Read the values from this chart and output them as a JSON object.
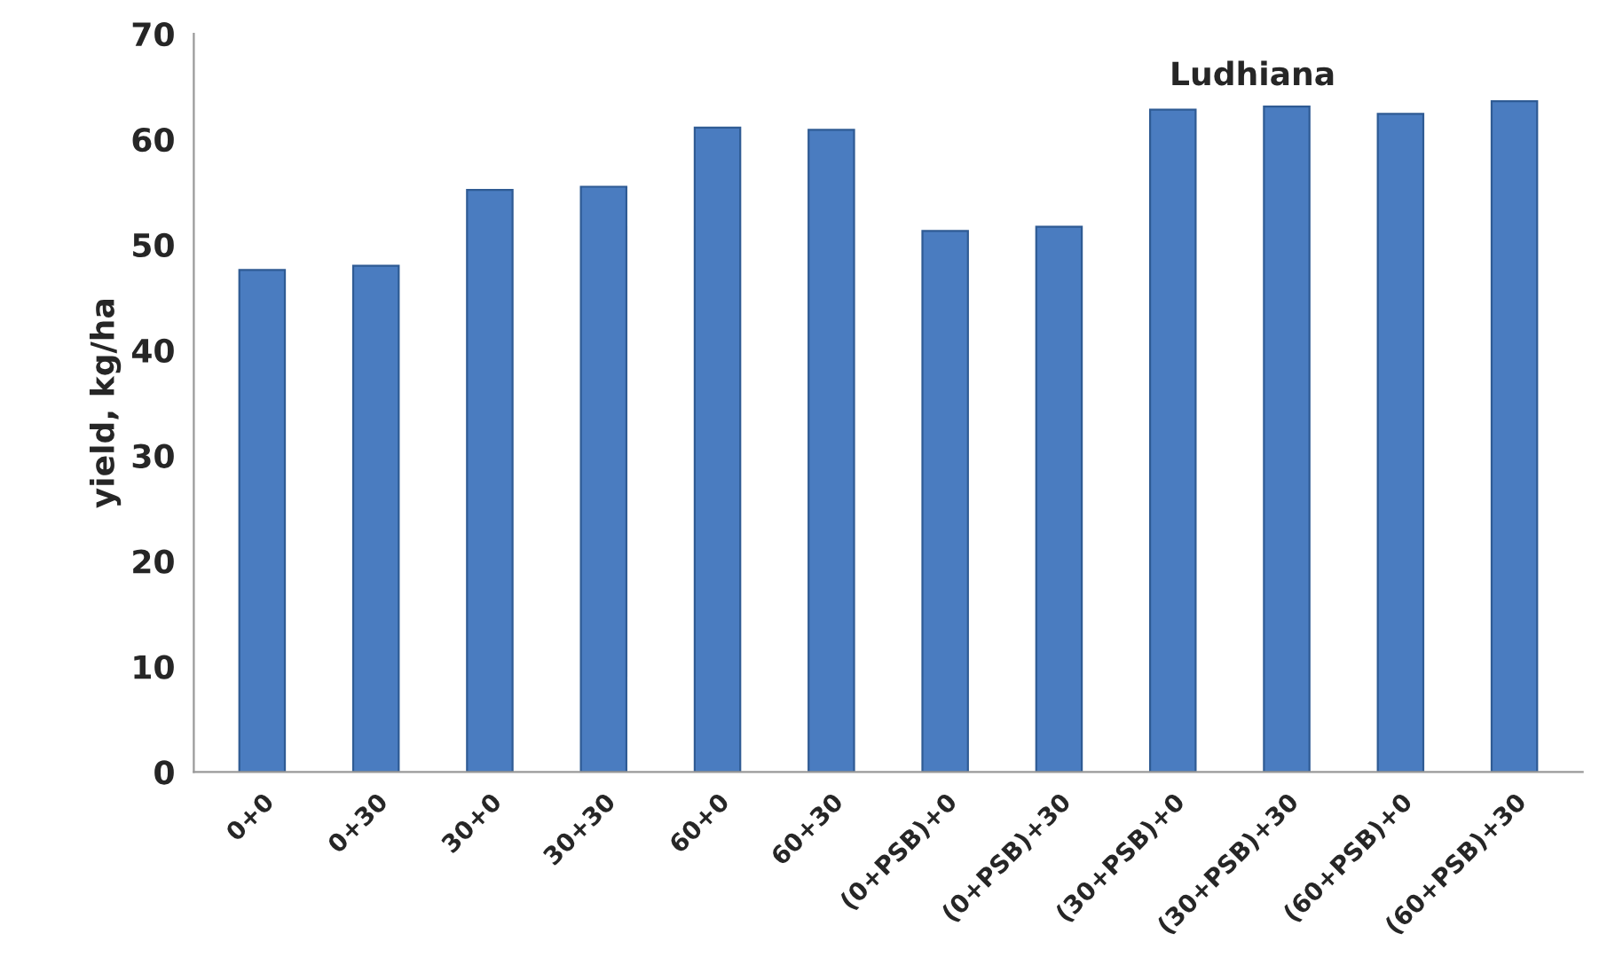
{
  "chart_data": {
    "type": "bar",
    "title": "Ludhiana",
    "ylabel": "yield, kg/ha",
    "categories": [
      "0+0",
      "0+30",
      "30+0",
      "30+30",
      "60+0",
      "60+30",
      "(0+PSB)+0",
      "(0+PSB)+30",
      "(30+PSB)+0",
      "(30+PSB)+30",
      "(60+PSB)+0",
      "(60+PSB)+30"
    ],
    "values": [
      47.6,
      48,
      55.2,
      55.5,
      61.1,
      60.9,
      51.3,
      51.7,
      62.8,
      63.1,
      62.4,
      63.6
    ],
    "color": "#4a7cc0",
    "ylim": [
      0,
      70
    ],
    "yticks": [
      0,
      10,
      20,
      30,
      40,
      50,
      60,
      70
    ],
    "grid": false,
    "legend": false
  }
}
